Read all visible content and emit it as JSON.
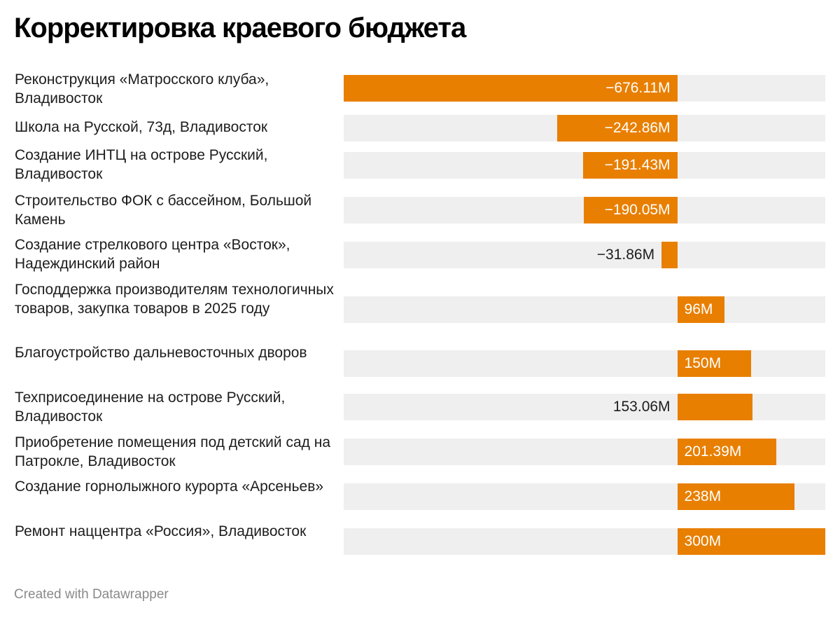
{
  "title": "Корректировка краевого бюджета",
  "footer": "Created with Datawrapper",
  "colors": {
    "bar": "#e87f00",
    "track": "#efefef"
  },
  "chart_data": {
    "type": "bar",
    "orientation": "horizontal",
    "title": "Корректировка краевого бюджета",
    "unit": "M",
    "xlim": [
      -676.11,
      300
    ],
    "categories": [
      "Реконструкция «Матросского клуба», Владивосток",
      "Школа на Русской, 73д, Владивосток",
      "Создание ИНТЦ на острове Русский, Владивосток",
      "Строительство ФОК с бассейном, Большой Камень",
      "Создание стрелкового центра «Восток», Надеждинский район",
      "Господдержка производителям технологичных товаров, закупка товаров в 2025 году",
      "Благоустройство дальневосточных дворов",
      "Техприсоединение на острове Русский, Владивосток",
      "Приобретение помещения под детский сад на Патрокле, Владивосток",
      "Создание горнолыжного курорта «Арсеньев»",
      "Ремонт наццентра «Россия», Владивосток"
    ],
    "values": [
      -676.11,
      -242.86,
      -191.43,
      -190.05,
      -31.86,
      96,
      150,
      153.06,
      201.39,
      238,
      300
    ],
    "value_labels": [
      "−676.11M",
      "−242.86M",
      "−191.43M",
      "−190.05M",
      "−31.86M",
      "96M",
      "150M",
      "153.06M",
      "201.39M",
      "238M",
      "300M"
    ]
  }
}
